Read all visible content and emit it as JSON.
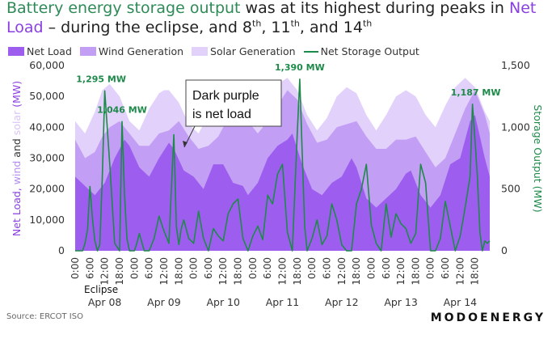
{
  "title": {
    "part1": "Battery energy storage output",
    "part2": " was at its highest during peaks in ",
    "part3": "Net Load",
    "part4": " – during the eclipse, and 8",
    "sup1": "th",
    "part5": ", 11",
    "sup2": "th",
    "part6": ", and 14",
    "sup3": "th"
  },
  "legend": {
    "net_load": "Net Load",
    "wind": "Wind Generation",
    "solar": "Solar Generation",
    "storage": "Net Storage Output"
  },
  "colors": {
    "net_load": "#9d5ef0",
    "wind": "#c39ef5",
    "solar": "#e2d1fa",
    "storage": "#1e8a4a",
    "title_green": "#2e8b57",
    "title_purple": "#8a3fe0"
  },
  "annotation": {
    "line1": "Dark purple",
    "line2": "is net load"
  },
  "eclipse_label": "Eclipse",
  "source": "Source: ERCOT ISO",
  "brand": "MODOENERGY",
  "chart_data": {
    "type": "area",
    "x_unit": "hours since 0:00 Apr 08",
    "left_axis": {
      "label_parts": [
        {
          "text": "Net Load, ",
          "color": "#8a3fe0"
        },
        {
          "text": "wind",
          "color": "#b48cf0"
        },
        {
          "text": " and ",
          "color": "#333333"
        },
        {
          "text": "solar",
          "color": "#d8c3f7"
        },
        {
          "text": " (MW)",
          "color": "#8a3fe0"
        }
      ],
      "ylim": [
        0,
        60000
      ],
      "ticks": [
        "0",
        "10,000",
        "20,000",
        "30,000",
        "40,000",
        "50,000",
        "60,000"
      ]
    },
    "right_axis": {
      "label": "Storage Output (MW)",
      "ylim": [
        0,
        1500
      ],
      "ticks": [
        "0",
        "500",
        "1,000",
        "1,500"
      ]
    },
    "x_ticks": [
      "0:00",
      "6:00",
      "12:00",
      "18:00",
      "0:00",
      "6:00",
      "12:00",
      "18:00",
      "0:00",
      "6:00",
      "12:00",
      "18:00",
      "0:00",
      "6:00",
      "12:00",
      "18:00",
      "0:00",
      "6:00",
      "12:00",
      "18:00",
      "0:00",
      "6:00",
      "12:00",
      "18:00",
      "0:00",
      "6:00",
      "12:00",
      "18:00"
    ],
    "day_labels": [
      "Apr 08",
      "Apr 09",
      "Apr 10",
      "Apr 11",
      "Apr 12",
      "Apr 13",
      "Apr 14"
    ],
    "series": [
      {
        "name": "Solar Generation",
        "role": "total",
        "x": [
          0,
          4,
          8,
          11,
          14,
          18,
          22,
          26,
          30,
          34,
          36,
          38,
          42,
          46,
          50,
          54,
          58,
          60,
          62,
          66,
          70,
          74,
          78,
          82,
          86,
          90,
          94,
          98,
          102,
          106,
          110,
          114,
          118,
          122,
          126,
          130,
          134,
          138,
          142,
          146,
          150,
          154,
          158,
          162,
          166,
          168
        ],
        "values": [
          42000,
          38000,
          45000,
          52000,
          54000,
          50000,
          42000,
          39000,
          46000,
          51000,
          52000,
          52000,
          48000,
          41000,
          38000,
          44000,
          51000,
          53000,
          52000,
          48000,
          44000,
          40000,
          48000,
          54000,
          56000,
          52000,
          44000,
          39000,
          43000,
          50000,
          53000,
          51000,
          44000,
          39000,
          44000,
          50000,
          52000,
          50000,
          44000,
          40000,
          47000,
          53000,
          56000,
          53000,
          45000,
          42000
        ]
      },
      {
        "name": "Wind Generation",
        "role": "net_load_plus_wind",
        "x": [
          0,
          4,
          8,
          11,
          14,
          18,
          22,
          26,
          30,
          34,
          38,
          42,
          46,
          50,
          54,
          58,
          62,
          66,
          70,
          74,
          78,
          82,
          86,
          90,
          94,
          98,
          102,
          106,
          110,
          114,
          118,
          122,
          126,
          130,
          134,
          138,
          142,
          146,
          150,
          154,
          158,
          162,
          166,
          168
        ],
        "values": [
          36000,
          30000,
          32000,
          37000,
          40000,
          42000,
          38000,
          34000,
          34000,
          38000,
          39000,
          42000,
          37000,
          33000,
          34000,
          37000,
          43000,
          47000,
          42000,
          38000,
          42000,
          47000,
          52000,
          49000,
          41000,
          35000,
          36000,
          40000,
          41000,
          42000,
          37000,
          33000,
          33000,
          36000,
          36000,
          37000,
          32000,
          27000,
          30000,
          38000,
          46000,
          52000,
          44000,
          38000
        ]
      },
      {
        "name": "Net Load",
        "role": "net_load",
        "x": [
          0,
          4,
          8,
          12,
          16,
          20,
          22,
          26,
          30,
          34,
          38,
          40,
          44,
          48,
          52,
          56,
          60,
          64,
          68,
          70,
          74,
          78,
          82,
          86,
          88,
          92,
          96,
          100,
          104,
          108,
          112,
          114,
          118,
          122,
          126,
          130,
          134,
          136,
          140,
          144,
          148,
          152,
          156,
          160,
          162,
          166,
          168
        ],
        "values": [
          24000,
          21000,
          18000,
          22000,
          30000,
          36000,
          34000,
          27000,
          24000,
          30000,
          35000,
          33000,
          26000,
          24000,
          20000,
          28000,
          28000,
          22000,
          21000,
          18000,
          22000,
          30000,
          34000,
          36000,
          38000,
          28000,
          20000,
          18000,
          22000,
          24000,
          30000,
          27000,
          17000,
          14000,
          17000,
          20000,
          25000,
          26000,
          18000,
          14000,
          18000,
          28000,
          30000,
          42000,
          44000,
          30000,
          24000
        ]
      },
      {
        "name": "Net Storage Output",
        "role": "storage",
        "axis": "right",
        "x": [
          0,
          3,
          4,
          5,
          6,
          7,
          8,
          9,
          10,
          11,
          12,
          14,
          16,
          18,
          19,
          20,
          21,
          22,
          23,
          24,
          25,
          26,
          28,
          30,
          32,
          34,
          36,
          38,
          40,
          41,
          42,
          43,
          44,
          46,
          48,
          50,
          52,
          54,
          56,
          58,
          60,
          62,
          64,
          66,
          68,
          70,
          72,
          74,
          76,
          78,
          80,
          82,
          84,
          86,
          88,
          90,
          91,
          92,
          93,
          94,
          96,
          98,
          100,
          102,
          104,
          106,
          108,
          110,
          112,
          114,
          116,
          118,
          120,
          122,
          124,
          126,
          128,
          130,
          132,
          134,
          136,
          138,
          140,
          142,
          144,
          146,
          148,
          150,
          152,
          154,
          156,
          158,
          160,
          161,
          162,
          163,
          164,
          165,
          166,
          167,
          168
        ],
        "values": [
          0,
          0,
          60,
          170,
          520,
          260,
          80,
          0,
          50,
          600,
          1295,
          700,
          60,
          0,
          1046,
          450,
          100,
          0,
          0,
          0,
          60,
          140,
          0,
          0,
          100,
          280,
          160,
          60,
          940,
          200,
          50,
          180,
          250,
          100,
          60,
          320,
          100,
          0,
          180,
          120,
          80,
          300,
          380,
          420,
          100,
          0,
          120,
          200,
          90,
          450,
          380,
          620,
          700,
          150,
          0,
          950,
          1390,
          800,
          200,
          0,
          100,
          250,
          50,
          120,
          380,
          250,
          50,
          0,
          0,
          380,
          500,
          700,
          210,
          60,
          0,
          380,
          110,
          300,
          220,
          180,
          60,
          140,
          700,
          550,
          0,
          0,
          100,
          400,
          200,
          0,
          120,
          350,
          600,
          1187,
          900,
          600,
          150,
          0,
          80,
          60,
          80
        ]
      }
    ],
    "annotations": [
      {
        "x": 11.5,
        "y_right": 1295,
        "text": "1,295 MW"
      },
      {
        "x": 19,
        "y_right": 1046,
        "text": "1,046 MW"
      },
      {
        "x": 91,
        "y_right": 1390,
        "text": "1,390 MW"
      },
      {
        "x": 161,
        "y_right": 1187,
        "text": "1,187 MW"
      }
    ]
  }
}
